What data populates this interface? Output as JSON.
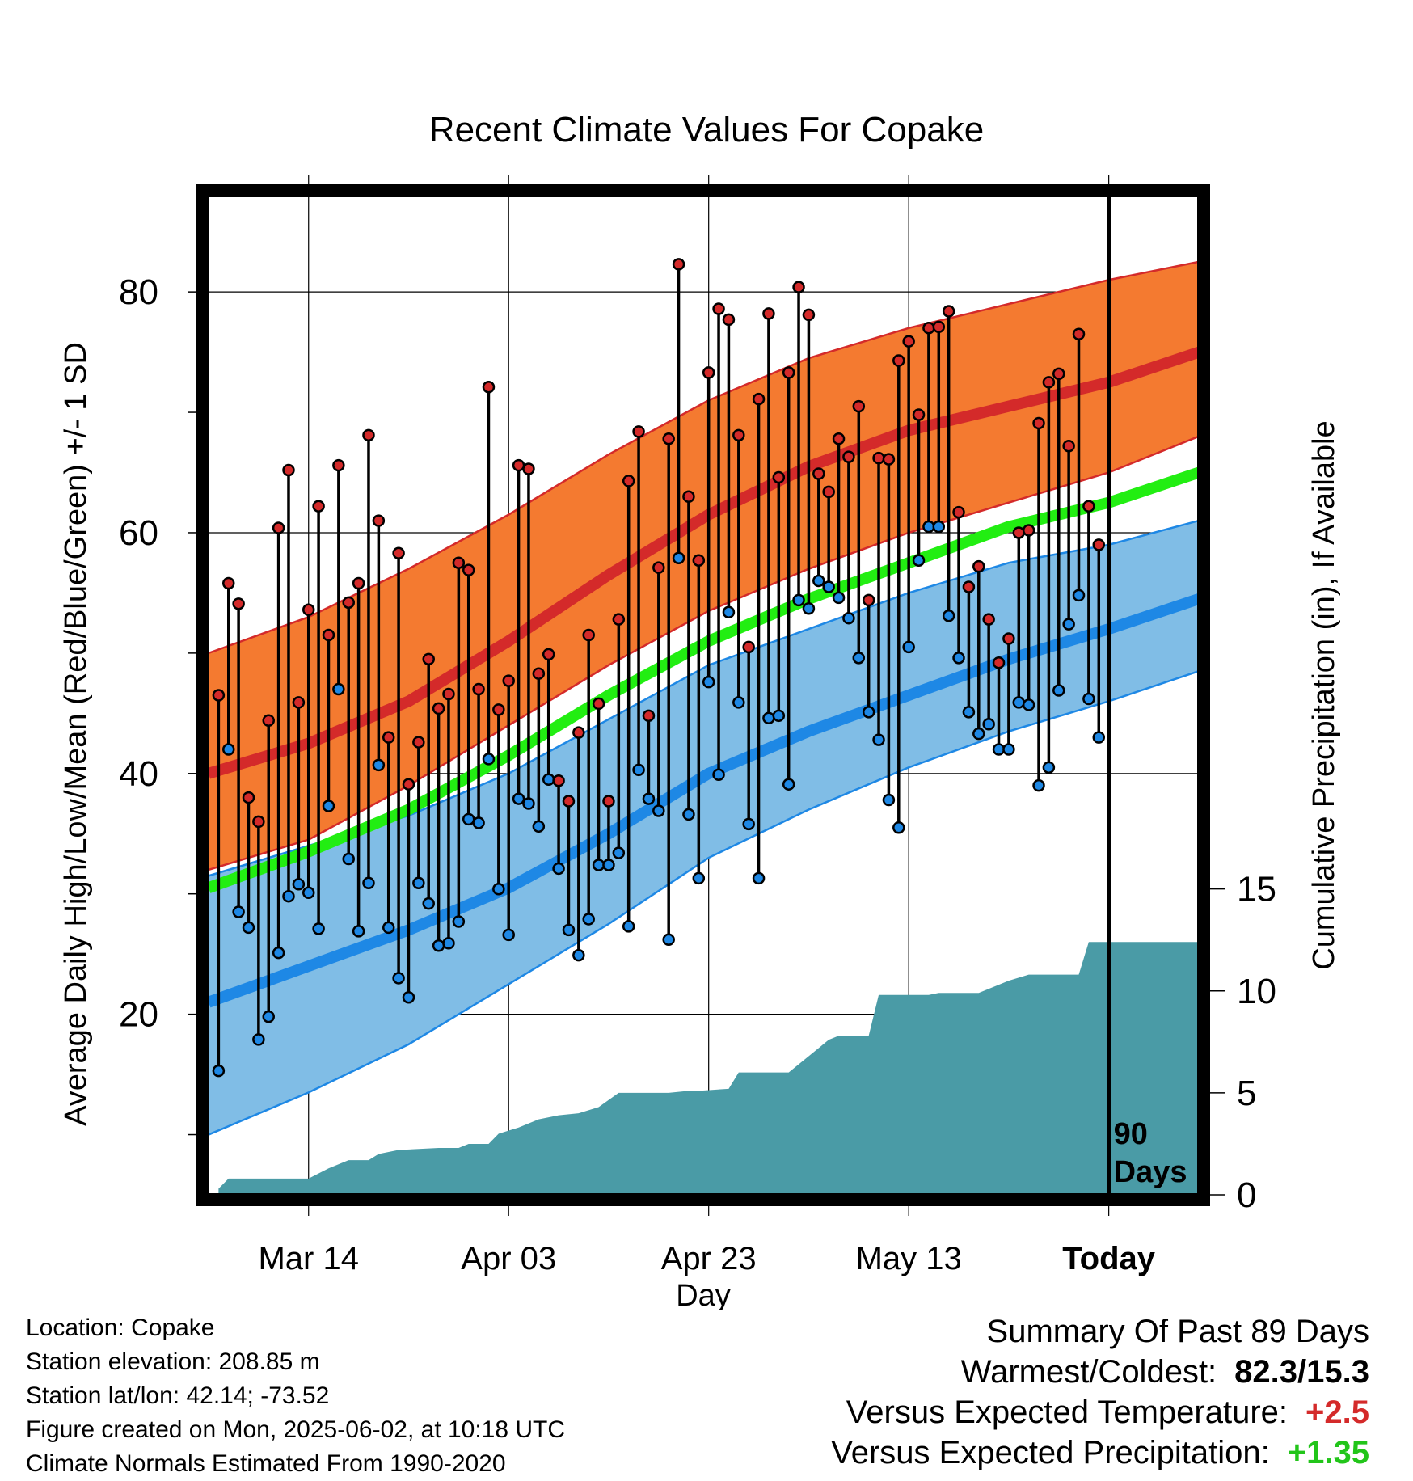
{
  "chart_data": {
    "type": "line",
    "title": "Recent Climate Values For Copake",
    "xlabel": "Day",
    "ylabel": "Average Daily High/Low/Mean (Red/Blue/Green) +/- 1 SD",
    "y2label": "Cumulative Precipitation (in), If Available",
    "x_ticks": [
      "Mar 14",
      "Apr 03",
      "Apr 23",
      "May 13",
      "Today"
    ],
    "x_range_days": [
      -90,
      9
    ],
    "x_tick_days": [
      -80,
      -60,
      -40,
      -20,
      0
    ],
    "ylim": [
      5,
      88
    ],
    "y_ticks": [
      20,
      40,
      60,
      80
    ],
    "y2lim": [
      0,
      49
    ],
    "y2_ticks": [
      0,
      5,
      10,
      15
    ],
    "today_marker_label": [
      "90",
      "Days"
    ],
    "colors": {
      "high_band": "#f47a30",
      "high_line": "#d42a2a",
      "low_band": "#80bde6",
      "low_line": "#1e88e5",
      "mean_line": "#22ee12",
      "precip": "#4a9ba6"
    },
    "normals": {
      "x": [
        -90,
        -80,
        -70,
        -60,
        -50,
        -40,
        -30,
        -20,
        -10,
        0,
        9
      ],
      "high_mean": [
        40.0,
        42.5,
        46.0,
        51.0,
        56.5,
        61.5,
        65.5,
        68.5,
        70.5,
        72.5,
        75.0
      ],
      "high_sd_upper": [
        50.0,
        53.0,
        57.0,
        61.5,
        66.5,
        71.0,
        74.5,
        77.0,
        79.0,
        81.0,
        82.5
      ],
      "high_sd_lower": [
        32.0,
        34.5,
        39.0,
        44.0,
        49.0,
        53.5,
        57.0,
        60.0,
        62.5,
        65.0,
        68.0
      ],
      "mean": [
        30.5,
        33.5,
        37.0,
        41.5,
        46.5,
        51.0,
        54.5,
        57.5,
        60.5,
        62.5,
        65.0
      ],
      "low_mean": [
        21.0,
        24.0,
        27.0,
        30.5,
        35.0,
        40.0,
        43.5,
        46.5,
        49.5,
        52.0,
        54.5
      ],
      "low_sd_upper": [
        31.5,
        34.0,
        36.5,
        40.0,
        44.5,
        49.0,
        52.0,
        55.0,
        57.5,
        59.0,
        61.0
      ],
      "low_sd_lower": [
        10.0,
        13.5,
        17.5,
        22.5,
        27.5,
        33.0,
        37.0,
        40.5,
        43.5,
        46.0,
        48.5
      ]
    },
    "daily": {
      "start_day": -89,
      "high": [
        46.5,
        55.8,
        54.1,
        38.0,
        36.0,
        44.4,
        60.4,
        65.2,
        45.9,
        53.6,
        62.2,
        51.5,
        65.6,
        54.2,
        55.8,
        68.1,
        61.0,
        43.0,
        58.3,
        39.1,
        42.6,
        49.5,
        45.4,
        46.6,
        57.5,
        56.9,
        47.0,
        72.1,
        45.3,
        47.7,
        65.6,
        65.3,
        48.3,
        49.9,
        39.4,
        37.7,
        43.4,
        51.5,
        45.8,
        37.7,
        52.8,
        64.3,
        68.4,
        44.8,
        57.1,
        67.8,
        82.3,
        63.0,
        57.7,
        73.3,
        78.6,
        77.7,
        68.1,
        50.5,
        71.1,
        78.2,
        64.6,
        73.3,
        80.4,
        78.1,
        64.9,
        63.4,
        67.8,
        66.3,
        70.5,
        54.4,
        66.2,
        66.1,
        74.3,
        75.9,
        69.8,
        77.0,
        77.1,
        78.4,
        61.7,
        55.5,
        57.2,
        52.8,
        49.2,
        51.2,
        60.0,
        60.2,
        69.1,
        72.5,
        73.2,
        67.2,
        76.5,
        62.2,
        59.0
      ],
      "low": [
        15.3,
        42.0,
        28.5,
        27.2,
        17.9,
        19.8,
        25.1,
        29.8,
        30.8,
        30.1,
        27.1,
        37.3,
        47.0,
        32.9,
        26.9,
        30.9,
        40.7,
        27.2,
        23.0,
        21.4,
        30.9,
        29.2,
        25.7,
        25.9,
        27.7,
        36.2,
        35.9,
        41.2,
        30.4,
        26.6,
        37.9,
        37.5,
        35.6,
        39.5,
        32.1,
        27.0,
        24.9,
        27.9,
        32.4,
        32.4,
        33.4,
        27.3,
        40.3,
        37.9,
        36.9,
        26.2,
        57.9,
        36.6,
        31.3,
        47.6,
        39.9,
        53.4,
        45.9,
        35.8,
        31.3,
        44.6,
        44.8,
        39.1,
        54.4,
        53.7,
        56.0,
        55.5,
        54.6,
        52.9,
        49.6,
        45.1,
        42.8,
        37.8,
        35.5,
        50.5,
        57.7,
        60.5,
        60.5,
        53.1,
        49.6,
        45.1,
        43.3,
        44.1,
        42.0,
        42.0,
        45.9,
        45.7,
        39.0,
        40.5,
        46.9,
        52.4,
        54.8,
        46.2,
        43.0
      ]
    },
    "cumulative_precip": {
      "x": [
        -89,
        -88,
        -80,
        -78,
        -76,
        -74,
        -73,
        -71,
        -67,
        -65,
        -64,
        -62,
        -61,
        -59,
        -57,
        -55,
        -53,
        -51,
        -49,
        -48,
        -44,
        -42,
        -41,
        -38,
        -37,
        -35,
        -32,
        -30,
        -28,
        -27,
        -24,
        -23,
        -20,
        -18,
        -17,
        -13,
        -10,
        -8,
        -5,
        -3,
        -2,
        9
      ],
      "y": [
        0.3,
        0.8,
        0.8,
        1.3,
        1.7,
        1.7,
        2.0,
        2.2,
        2.3,
        2.3,
        2.5,
        2.5,
        3.0,
        3.3,
        3.7,
        3.9,
        4.0,
        4.3,
        5.0,
        5.0,
        5.0,
        5.1,
        5.1,
        5.2,
        6.0,
        6.0,
        6.0,
        6.8,
        7.6,
        7.8,
        7.8,
        9.8,
        9.8,
        9.8,
        9.9,
        9.9,
        10.5,
        10.8,
        10.8,
        10.8,
        12.4,
        12.4
      ]
    }
  },
  "info": {
    "location": "Location: Copake",
    "elevation": "Station elevation: 208.85 m",
    "latlon": "Station lat/lon: 42.14; -73.52",
    "created": "Figure created on Mon, 2025-06-02, at 10:18 UTC",
    "normals": "Climate Normals Estimated From 1990-2020"
  },
  "summary": {
    "title": "Summary Of Past 89 Days",
    "warm_cold_label": "Warmest/Coldest:",
    "warm_cold_value": "82.3/15.3",
    "temp_label": "Versus Expected Temperature:",
    "temp_value": "+2.5",
    "precip_label": "Versus Expected Precipitation:",
    "precip_value": "+1.35"
  }
}
